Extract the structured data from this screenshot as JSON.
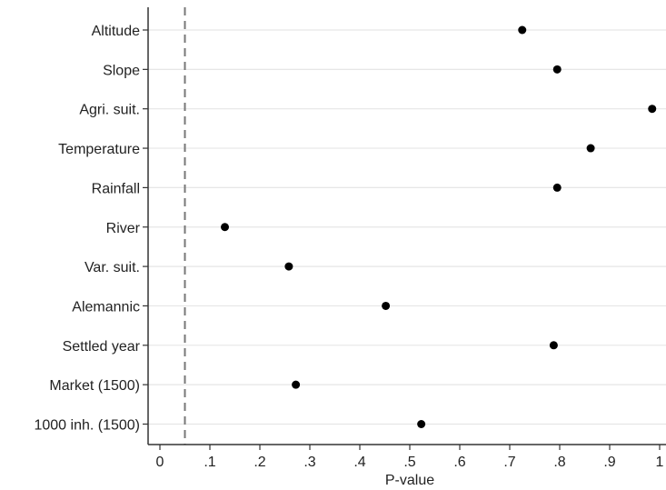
{
  "chart_data": {
    "type": "scatter",
    "title": "",
    "xlabel": "P-value",
    "ylabel": "",
    "xlim": [
      0,
      1
    ],
    "x_ticks": [
      0,
      0.1,
      0.2,
      0.3,
      0.4,
      0.5,
      0.6,
      0.7,
      0.8,
      0.9,
      1
    ],
    "x_tick_labels": [
      "0",
      ".1",
      ".2",
      ".3",
      ".4",
      ".5",
      ".6",
      ".7",
      ".8",
      ".9",
      "1"
    ],
    "reference_line": {
      "x": 0.05,
      "style": "dashed"
    },
    "grid": "horizontal",
    "legend": "none",
    "marker_color": "#000000",
    "categories": [
      "Altitude",
      "Slope",
      "Agri. suit.",
      "Temperature",
      "Rainfall",
      "River",
      "Var. suit.",
      "Alemannic",
      "Settled year",
      "Market (1500)",
      "1000 inh. (1500)"
    ],
    "values": [
      0.725,
      0.795,
      0.985,
      0.862,
      0.795,
      0.13,
      0.258,
      0.452,
      0.788,
      0.272,
      0.523
    ]
  }
}
